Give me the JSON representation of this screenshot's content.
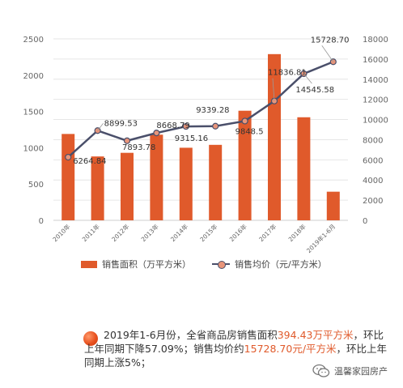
{
  "colors": {
    "bar": "#e05a2b",
    "line": "#4a4f6a",
    "point": "#e8957a",
    "highlight": "#e05a2b"
  },
  "chart_data": {
    "type": "bar",
    "categories": [
      "2010年",
      "2011年",
      "2012年",
      "2013年",
      "2014年",
      "2015年",
      "2016年",
      "2017年",
      "2018年",
      "2019年1-6月"
    ],
    "series": [
      {
        "name": "销售面积（万平方米）",
        "type": "bar",
        "axis": "left",
        "values": [
          1190,
          880,
          930,
          1180,
          1000,
          1040,
          1510,
          2290,
          1420,
          394.43
        ]
      },
      {
        "name": "销售均价（元/平方米）",
        "type": "line",
        "axis": "right",
        "values": [
          6264.84,
          8899.53,
          7893.78,
          8668.79,
          9315.16,
          9339.28,
          9848.5,
          11836.81,
          14545.58,
          15728.7
        ]
      }
    ],
    "data_labels": [
      "6264.84",
      "8899.53",
      "7893.78",
      "8668.79",
      "9315.16",
      "9339.28",
      "9848.5",
      "11836.81",
      "14545.58",
      "15728.70"
    ],
    "yleft_ticks": [
      "0",
      "500",
      "1000",
      "1500",
      "2000",
      "2500"
    ],
    "yright_ticks": [
      "0",
      "2000",
      "4000",
      "6000",
      "8000",
      "10000",
      "12000",
      "14000",
      "16000",
      "18000"
    ],
    "ylim_left": [
      0,
      2500
    ],
    "ylim_right": [
      0,
      18000
    ],
    "legend": "bottom",
    "grid": true
  },
  "legend": {
    "bar_label": "销售面积（万平方米）",
    "line_label": "销售均价（元/平方米）"
  },
  "summary": {
    "part1": "2019年1-6月份，全省商品房销售面积",
    "area": "394.43万平方米",
    "part2": "，环比上年同期下降57.09%；销售均价约",
    "price": "15728.70元/平方米",
    "part3": "，环比上年同期上涨5%；"
  },
  "watermark": {
    "text": "温馨家园房产",
    "icon": "wechat-icon"
  }
}
